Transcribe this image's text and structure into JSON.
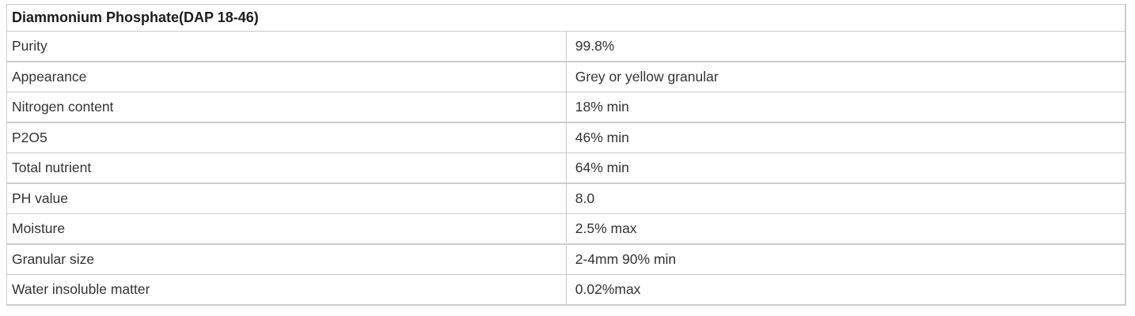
{
  "table": {
    "title": "Diammonium Phosphate(DAP 18-46)",
    "rows": [
      {
        "label": "Purity",
        "value": "99.8%"
      },
      {
        "label": "Appearance",
        "value": "Grey or yellow granular"
      },
      {
        "label": "Nitrogen content",
        "value": "18% min"
      },
      {
        "label": "P2O5",
        "value": "46% min"
      },
      {
        "label": "Total nutrient",
        "value": "64% min"
      },
      {
        "label": "PH value",
        "value": "8.0"
      },
      {
        "label": "Moisture",
        "value": "2.5% max"
      },
      {
        "label": "Granular size",
        "value": "2-4mm 90% min"
      },
      {
        "label": "Water insoluble matter",
        "value": "0.02%max"
      }
    ],
    "colors": {
      "border": "#cccccc",
      "body_text": "#333333",
      "title_text": "#1c1c1c",
      "background": "#ffffff"
    }
  }
}
